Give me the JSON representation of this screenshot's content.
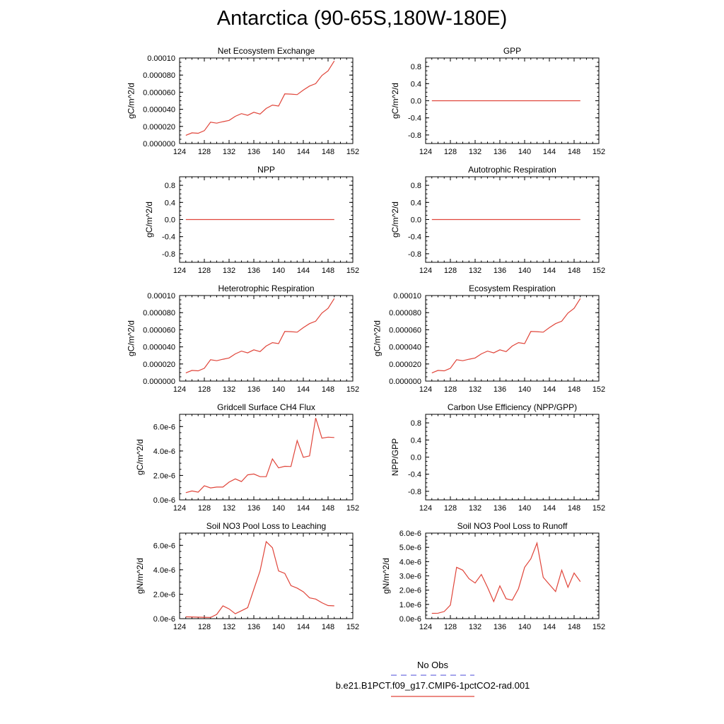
{
  "figure": {
    "title": "Antarctica (90-65S,180W-180E)"
  },
  "legend": {
    "entries": [
      {
        "label": "No Obs",
        "color": "#6f6fe0",
        "style": "dashed"
      },
      {
        "label": "b.e21.B1PCT.f09_g17.CMIP6-1pctCO2-rad.001",
        "color": "#e0453a",
        "style": "solid"
      }
    ]
  },
  "chart_data": [
    {
      "type": "line",
      "title": "Net Ecosystem Exchange",
      "ylabel": "gC/m^2/d",
      "xlim": [
        124,
        152
      ],
      "xticks": [
        "124",
        "128",
        "132",
        "136",
        "140",
        "144",
        "148",
        "152"
      ],
      "ylim": [
        0,
        0.0001
      ],
      "yticks": [
        "0.000000",
        "0.000020",
        "0.000040",
        "0.000060",
        "0.000080",
        "0.00010"
      ],
      "series": [
        {
          "color": "#e0453a",
          "x": [
            125,
            126,
            127,
            128,
            129,
            130,
            131,
            132,
            133,
            134,
            135,
            136,
            137,
            138,
            139,
            140,
            141,
            142,
            143,
            144,
            145,
            146,
            147,
            148,
            149
          ],
          "y": [
            9.6e-06,
            1.25e-05,
            1.2e-05,
            1.5e-05,
            2.5e-05,
            2.38e-05,
            2.55e-05,
            2.7e-05,
            3.18e-05,
            3.5e-05,
            3.3e-05,
            3.65e-05,
            3.45e-05,
            4.1e-05,
            4.5e-05,
            4.38e-05,
            5.8e-05,
            5.78e-05,
            5.72e-05,
            6.25e-05,
            6.72e-05,
            7e-05,
            7.95e-05,
            8.5e-05,
            9.65e-05
          ]
        }
      ]
    },
    {
      "type": "line",
      "title": "GPP",
      "ylabel": "gC/m^2/d",
      "xlim": [
        124,
        152
      ],
      "xticks": [
        "124",
        "128",
        "132",
        "136",
        "140",
        "144",
        "148",
        "152"
      ],
      "ylim": [
        -1,
        1
      ],
      "yticks": [
        "-0.8",
        "-0.4",
        "0.0",
        "0.4",
        "0.8"
      ],
      "series": [
        {
          "color": "#e0453a",
          "x": [
            125,
            149
          ],
          "y": [
            0,
            0
          ]
        }
      ]
    },
    {
      "type": "line",
      "title": "NPP",
      "ylabel": "gC/m^2/d",
      "xlim": [
        124,
        152
      ],
      "xticks": [
        "124",
        "128",
        "132",
        "136",
        "140",
        "144",
        "148",
        "152"
      ],
      "ylim": [
        -1,
        1
      ],
      "yticks": [
        "-0.8",
        "-0.4",
        "0.0",
        "0.4",
        "0.8"
      ],
      "series": [
        {
          "color": "#e0453a",
          "x": [
            125,
            149
          ],
          "y": [
            0,
            0
          ]
        }
      ]
    },
    {
      "type": "line",
      "title": "Autotrophic Respiration",
      "ylabel": "gC/m^2/d",
      "xlim": [
        124,
        152
      ],
      "xticks": [
        "124",
        "128",
        "132",
        "136",
        "140",
        "144",
        "148",
        "152"
      ],
      "ylim": [
        -1,
        1
      ],
      "yticks": [
        "-0.8",
        "-0.4",
        "0.0",
        "0.4",
        "0.8"
      ],
      "series": [
        {
          "color": "#e0453a",
          "x": [
            125,
            149
          ],
          "y": [
            0,
            0
          ]
        }
      ]
    },
    {
      "type": "line",
      "title": "Heterotrophic Respiration",
      "ylabel": "gC/m^2/d",
      "xlim": [
        124,
        152
      ],
      "xticks": [
        "124",
        "128",
        "132",
        "136",
        "140",
        "144",
        "148",
        "152"
      ],
      "ylim": [
        0,
        0.0001
      ],
      "yticks": [
        "0.000000",
        "0.000020",
        "0.000040",
        "0.000060",
        "0.000080",
        "0.00010"
      ],
      "series": [
        {
          "color": "#e0453a",
          "x": [
            125,
            126,
            127,
            128,
            129,
            130,
            131,
            132,
            133,
            134,
            135,
            136,
            137,
            138,
            139,
            140,
            141,
            142,
            143,
            144,
            145,
            146,
            147,
            148,
            149
          ],
          "y": [
            9.6e-06,
            1.25e-05,
            1.2e-05,
            1.5e-05,
            2.5e-05,
            2.38e-05,
            2.55e-05,
            2.7e-05,
            3.18e-05,
            3.5e-05,
            3.3e-05,
            3.65e-05,
            3.45e-05,
            4.1e-05,
            4.5e-05,
            4.38e-05,
            5.8e-05,
            5.78e-05,
            5.72e-05,
            6.25e-05,
            6.72e-05,
            7e-05,
            7.95e-05,
            8.5e-05,
            9.65e-05
          ]
        }
      ]
    },
    {
      "type": "line",
      "title": "Ecosystem Respiration",
      "ylabel": "gC/m^2/d",
      "xlim": [
        124,
        152
      ],
      "xticks": [
        "124",
        "128",
        "132",
        "136",
        "140",
        "144",
        "148",
        "152"
      ],
      "ylim": [
        0,
        0.0001
      ],
      "yticks": [
        "0.000000",
        "0.000020",
        "0.000040",
        "0.000060",
        "0.000080",
        "0.00010"
      ],
      "series": [
        {
          "color": "#e0453a",
          "x": [
            125,
            126,
            127,
            128,
            129,
            130,
            131,
            132,
            133,
            134,
            135,
            136,
            137,
            138,
            139,
            140,
            141,
            142,
            143,
            144,
            145,
            146,
            147,
            148,
            149
          ],
          "y": [
            9.6e-06,
            1.25e-05,
            1.2e-05,
            1.5e-05,
            2.5e-05,
            2.38e-05,
            2.55e-05,
            2.7e-05,
            3.18e-05,
            3.5e-05,
            3.3e-05,
            3.65e-05,
            3.45e-05,
            4.1e-05,
            4.5e-05,
            4.38e-05,
            5.8e-05,
            5.78e-05,
            5.72e-05,
            6.25e-05,
            6.72e-05,
            7e-05,
            7.95e-05,
            8.5e-05,
            9.65e-05
          ]
        }
      ]
    },
    {
      "type": "line",
      "title": "Gridcell Surface CH4 Flux",
      "ylabel": "gC/m^2/d",
      "xlim": [
        124,
        152
      ],
      "xticks": [
        "124",
        "128",
        "132",
        "136",
        "140",
        "144",
        "148",
        "152"
      ],
      "ylim": [
        0,
        7e-06
      ],
      "yticks": [
        "0.0e-6",
        "2.0e-6",
        "4.0e-6",
        "6.0e-6"
      ],
      "series": [
        {
          "color": "#e0453a",
          "x": [
            125,
            126,
            127,
            128,
            129,
            130,
            131,
            132,
            133,
            134,
            135,
            136,
            137,
            138,
            139,
            140,
            141,
            142,
            143,
            144,
            145,
            146,
            147,
            148,
            149
          ],
          "y": [
            5.9e-07,
            7.3e-07,
            6.3e-07,
            1.15e-06,
            9.8e-07,
            1.05e-06,
            1.05e-06,
            1.45e-06,
            1.72e-06,
            1.5e-06,
            2.05e-06,
            2.12e-06,
            1.9e-06,
            1.9e-06,
            3.35e-06,
            2.62e-06,
            2.75e-06,
            2.73e-06,
            4.85e-06,
            3.48e-06,
            3.6e-06,
            6.7e-06,
            5.05e-06,
            5.13e-06,
            5.1e-06
          ]
        }
      ]
    },
    {
      "type": "line",
      "title": "Carbon Use Efficiency (NPP/GPP)",
      "ylabel": "NPP/GPP",
      "xlim": [
        124,
        152
      ],
      "xticks": [
        "124",
        "128",
        "132",
        "136",
        "140",
        "144",
        "148",
        "152"
      ],
      "ylim": [
        -1,
        1
      ],
      "yticks": [
        "-0.8",
        "-0.4",
        "0.0",
        "0.4",
        "0.8"
      ],
      "series": []
    },
    {
      "type": "line",
      "title": "Soil NO3 Pool Loss to Leaching",
      "ylabel": "gN/m^2/d",
      "xlim": [
        124,
        152
      ],
      "xticks": [
        "124",
        "128",
        "132",
        "136",
        "140",
        "144",
        "148",
        "152"
      ],
      "ylim": [
        0,
        7e-06
      ],
      "yticks": [
        "0.0e-6",
        "2.0e-6",
        "4.0e-6",
        "6.0e-6"
      ],
      "series": [
        {
          "color": "#e0453a",
          "x": [
            125,
            126,
            127,
            128,
            129,
            130,
            131,
            132,
            133,
            134,
            135,
            136,
            137,
            138,
            139,
            140,
            141,
            142,
            143,
            144,
            145,
            146,
            147,
            148,
            149
          ],
          "y": [
            1.5e-07,
            1.4e-07,
            1.2e-07,
            1.1e-07,
            1e-07,
            3.5e-07,
            1.05e-06,
            8e-07,
            4e-07,
            6.5e-07,
            9e-07,
            2.4e-06,
            3.9e-06,
            6.3e-06,
            5.8e-06,
            3.9e-06,
            3.7e-06,
            2.7e-06,
            2.5e-06,
            2.2e-06,
            1.7e-06,
            1.6e-06,
            1.3e-06,
            1.07e-06,
            1.05e-06
          ]
        }
      ]
    },
    {
      "type": "line",
      "title": "Soil NO3 Pool Loss to Runoff",
      "ylabel": "gN/m^2/d",
      "xlim": [
        124,
        152
      ],
      "xticks": [
        "124",
        "128",
        "132",
        "136",
        "140",
        "144",
        "148",
        "152"
      ],
      "ylim": [
        0,
        6e-06
      ],
      "yticks": [
        "0.0e-6",
        "1.0e-6",
        "2.0e-6",
        "3.0e-6",
        "4.0e-6",
        "5.0e-6",
        "6.0e-6"
      ],
      "series": [
        {
          "color": "#e0453a",
          "x": [
            125,
            126,
            127,
            128,
            129,
            130,
            131,
            132,
            133,
            134,
            135,
            136,
            137,
            138,
            139,
            140,
            141,
            142,
            143,
            144,
            145,
            146,
            147,
            148,
            149
          ],
          "y": [
            3.7e-07,
            3.8e-07,
            5e-07,
            9.5e-07,
            3.6e-06,
            3.4e-06,
            2.8e-06,
            2.5e-06,
            3.1e-06,
            2.2e-06,
            1.2e-06,
            2.3e-06,
            1.4e-06,
            1.3e-06,
            2.1e-06,
            3.6e-06,
            4.2e-06,
            5.3e-06,
            2.9e-06,
            2.4e-06,
            1.9e-06,
            3.4e-06,
            2.2e-06,
            3.2e-06,
            2.6e-06
          ]
        }
      ]
    }
  ]
}
